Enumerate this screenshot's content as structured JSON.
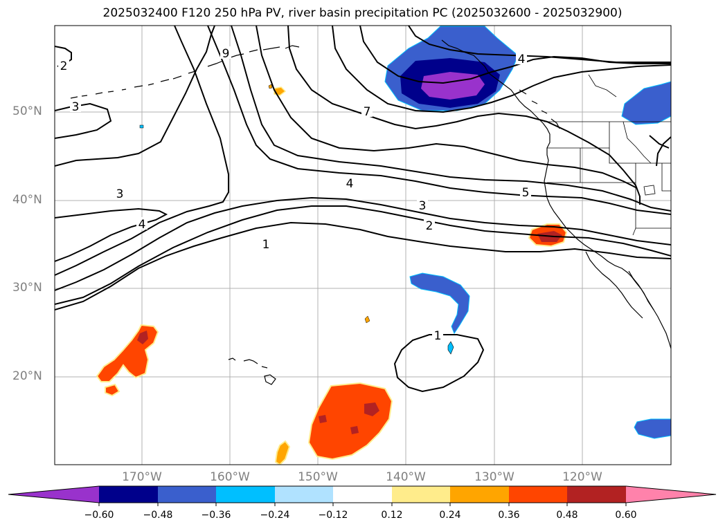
{
  "title": "2025032400 F120 250 hPa PV, river basin precipitation PC (2025032600 - 2025032900)",
  "latitude_labels": [
    "50°N",
    "40°N",
    "30°N",
    "20°N"
  ],
  "longitude_labels": [
    "170°W",
    "160°W",
    "150°W",
    "140°W",
    "130°W",
    "120°W"
  ],
  "contour_labels": [
    "2",
    "3",
    "3",
    "4",
    "9",
    "7",
    "4",
    "4",
    "3",
    "2",
    "1",
    "5",
    "1"
  ],
  "colorbar": {
    "tick_labels": [
      "−0.60",
      "−0.48",
      "−0.36",
      "−0.24",
      "−0.12",
      "0.12",
      "0.24",
      "0.36",
      "0.48",
      "0.60"
    ],
    "colors": [
      "#9932cc",
      "#00008b",
      "#3a5fcd",
      "#00bfff",
      "#b0e2ff",
      "#ffffff",
      "#ffec8b",
      "#ffa500",
      "#ff4500",
      "#b22222",
      "#ff82ab"
    ]
  }
}
